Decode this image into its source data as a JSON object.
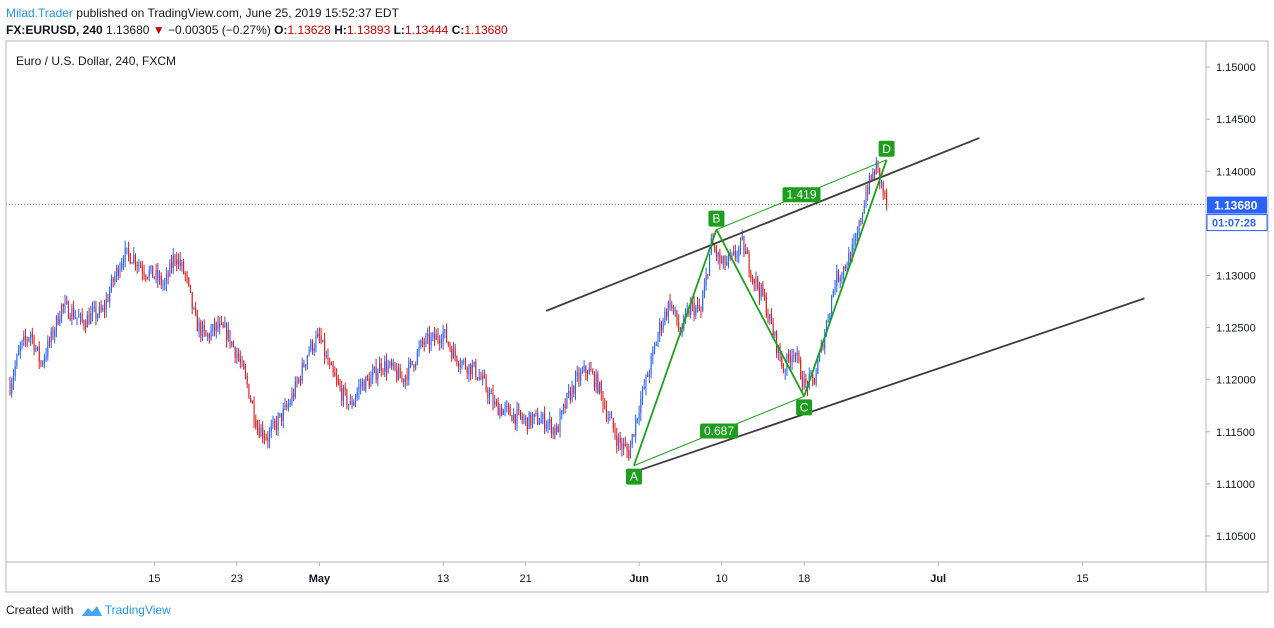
{
  "header": {
    "author": "Milad.Trader",
    "published_text": "published on TradingView.com, June 25, 2019 15:52:37 EDT",
    "symbol": "FX:EURUSD, 240",
    "last": "1.13680",
    "change": "−0.00305 (−0.27%)",
    "open_label": "O:",
    "open": "1.13628",
    "high_label": "H:",
    "high": "1.13893",
    "low_label": "L:",
    "low": "1.13444",
    "close_label": "C:",
    "close": "1.13680"
  },
  "footer": {
    "created_with": "Created with",
    "brand": "TradingView"
  },
  "colors": {
    "up": "#2962ff",
    "down": "#e01e1e",
    "pattern": "#1aa31a",
    "label_bg": "#1e9e1e",
    "channel": "#3c3c3c",
    "price_tag": "#2962ff",
    "last_line": "#5a7aa8"
  },
  "chart_data": {
    "type": "candlestick",
    "title": "Euro / U.S. Dollar, 240, FXCM",
    "y_ticks": [
      "1.15000",
      "1.14500",
      "1.14000",
      "1.13500",
      "1.13000",
      "1.12500",
      "1.12000",
      "1.11500",
      "1.11000",
      "1.10500"
    ],
    "ylim": [
      1.1025,
      1.1525
    ],
    "x_ticks": [
      {
        "label": "15",
        "day": 15
      },
      {
        "label": "23",
        "day": 23
      },
      {
        "label": "May",
        "day": 31
      },
      {
        "label": "13",
        "day": 43
      },
      {
        "label": "21",
        "day": 51
      },
      {
        "label": "Jun",
        "day": 62
      },
      {
        "label": "10",
        "day": 70
      },
      {
        "label": "18",
        "day": 78
      },
      {
        "label": "Jul",
        "day": 91
      },
      {
        "label": "15",
        "day": 105
      }
    ],
    "xlim": [
      1,
      116
    ],
    "last_price": "1.13680",
    "countdown": "01:07:28",
    "price_path": [
      [
        1,
        1.1195
      ],
      [
        2,
        1.123
      ],
      [
        3,
        1.1245
      ],
      [
        4,
        1.1215
      ],
      [
        5,
        1.124
      ],
      [
        6,
        1.127
      ],
      [
        7,
        1.1265
      ],
      [
        8,
        1.1255
      ],
      [
        9,
        1.1262
      ],
      [
        10,
        1.1265
      ],
      [
        11,
        1.1295
      ],
      [
        12,
        1.132
      ],
      [
        13,
        1.1318
      ],
      [
        14,
        1.1305
      ],
      [
        15,
        1.13
      ],
      [
        16,
        1.129
      ],
      [
        17,
        1.132
      ],
      [
        18,
        1.13
      ],
      [
        19,
        1.1255
      ],
      [
        20,
        1.124
      ],
      [
        21,
        1.125
      ],
      [
        22,
        1.1245
      ],
      [
        23,
        1.1225
      ],
      [
        24,
        1.1195
      ],
      [
        25,
        1.1155
      ],
      [
        26,
        1.1145
      ],
      [
        27,
        1.116
      ],
      [
        28,
        1.1175
      ],
      [
        29,
        1.12
      ],
      [
        30,
        1.123
      ],
      [
        31,
        1.124
      ],
      [
        32,
        1.121
      ],
      [
        33,
        1.119
      ],
      [
        34,
        1.1175
      ],
      [
        35,
        1.1195
      ],
      [
        36,
        1.12
      ],
      [
        37,
        1.1215
      ],
      [
        38,
        1.121
      ],
      [
        39,
        1.12
      ],
      [
        40,
        1.1215
      ],
      [
        41,
        1.1235
      ],
      [
        42,
        1.1238
      ],
      [
        43,
        1.1245
      ],
      [
        44,
        1.1225
      ],
      [
        45,
        1.1215
      ],
      [
        46,
        1.121
      ],
      [
        47,
        1.1195
      ],
      [
        48,
        1.1175
      ],
      [
        49,
        1.117
      ],
      [
        50,
        1.1165
      ],
      [
        51,
        1.116
      ],
      [
        52,
        1.1162
      ],
      [
        53,
        1.116
      ],
      [
        54,
        1.115
      ],
      [
        55,
        1.118
      ],
      [
        56,
        1.12
      ],
      [
        57,
        1.121
      ],
      [
        58,
        1.1195
      ],
      [
        59,
        1.1165
      ],
      [
        60,
        1.114
      ],
      [
        61,
        1.113
      ],
      [
        62,
        1.1175
      ],
      [
        63,
        1.121
      ],
      [
        64,
        1.125
      ],
      [
        65,
        1.1275
      ],
      [
        66,
        1.1245
      ],
      [
        67,
        1.127
      ],
      [
        68,
        1.1265
      ],
      [
        69,
        1.133
      ],
      [
        70,
        1.131
      ],
      [
        71,
        1.1315
      ],
      [
        72,
        1.133
      ],
      [
        73,
        1.13
      ],
      [
        74,
        1.128
      ],
      [
        75,
        1.1245
      ],
      [
        76,
        1.121
      ],
      [
        77,
        1.123
      ],
      [
        78,
        1.1195
      ],
      [
        79,
        1.12
      ],
      [
        80,
        1.1245
      ],
      [
        81,
        1.1295
      ],
      [
        82,
        1.131
      ],
      [
        83,
        1.133
      ],
      [
        84,
        1.138
      ],
      [
        85,
        1.1405
      ],
      [
        86,
        1.1368
      ]
    ],
    "pattern_points": [
      {
        "label": "A",
        "day": 61.5,
        "price": 1.11175
      },
      {
        "label": "B",
        "day": 69.5,
        "price": 1.1344
      },
      {
        "label": "C",
        "day": 78.0,
        "price": 1.1184
      },
      {
        "label": "D",
        "day": 86.0,
        "price": 1.1411
      }
    ],
    "ratios": [
      {
        "label": "1.419",
        "on": "BD"
      },
      {
        "label": "0.687",
        "on": "AC"
      }
    ],
    "channel_upper": [
      [
        53,
        1.1266
      ],
      [
        95,
        1.1432
      ]
    ],
    "channel_lower": [
      [
        62,
        1.1113
      ],
      [
        111,
        1.1278
      ]
    ]
  }
}
